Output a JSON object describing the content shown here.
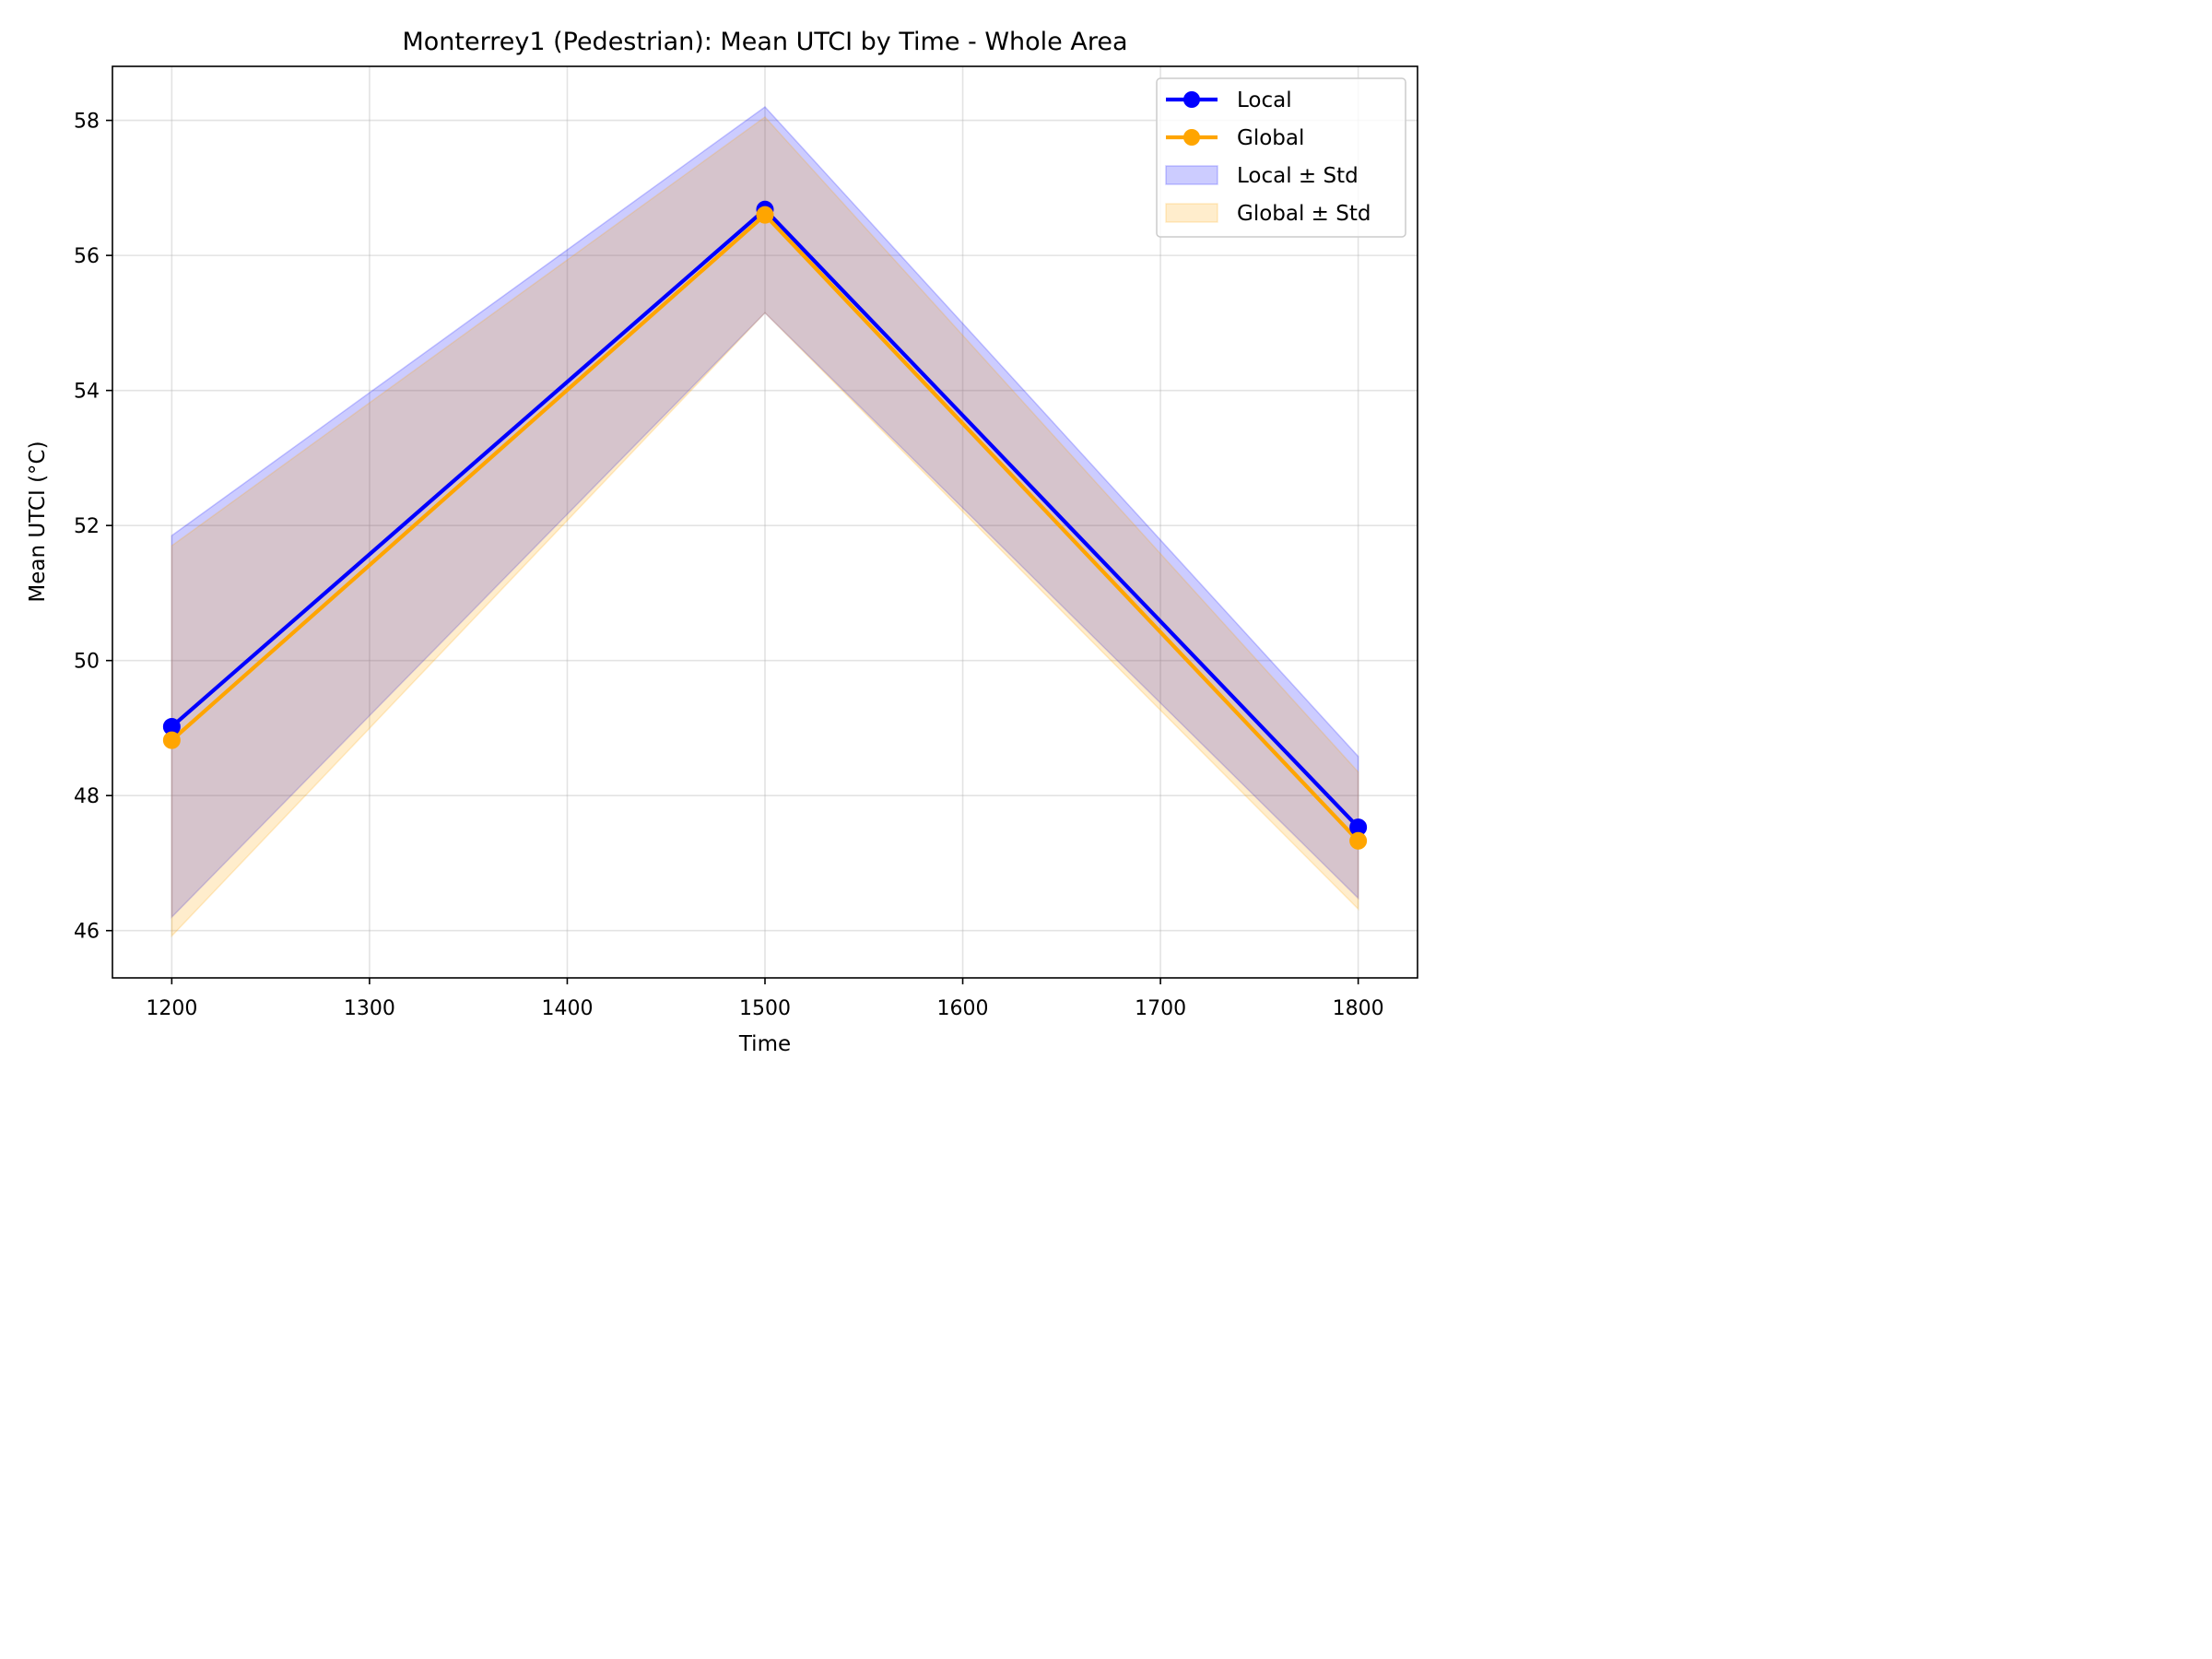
{
  "chart_data": {
    "type": "line",
    "title": "Monterrey1 (Pedestrian): Mean UTCI by Time - Whole Area",
    "xlabel": "Time",
    "ylabel": "Mean UTCI (°C)",
    "x": [
      1200,
      1500,
      1800
    ],
    "xlim": [
      1170,
      1830
    ],
    "ylim": [
      45.3,
      58.8
    ],
    "xticks": [
      1200,
      1300,
      1400,
      1500,
      1600,
      1700,
      1800
    ],
    "yticks": [
      46,
      48,
      50,
      52,
      54,
      56,
      58
    ],
    "grid": true,
    "legend_position": "top-right",
    "series": [
      {
        "name": "Local",
        "color": "#0000ff",
        "values": [
          49.02,
          56.68,
          47.53
        ],
        "std_lower": [
          46.2,
          55.15,
          46.48
        ],
        "std_upper": [
          51.85,
          58.2,
          48.58
        ]
      },
      {
        "name": "Global",
        "color": "#ffa500",
        "values": [
          48.82,
          56.6,
          47.33
        ],
        "std_lower": [
          45.92,
          55.15,
          46.32
        ],
        "std_upper": [
          51.7,
          58.05,
          48.35
        ]
      }
    ],
    "bands": [
      {
        "name": "Local ± Std",
        "color": "#0000ff"
      },
      {
        "name": "Global ± Std",
        "color": "#ffa500"
      }
    ]
  }
}
